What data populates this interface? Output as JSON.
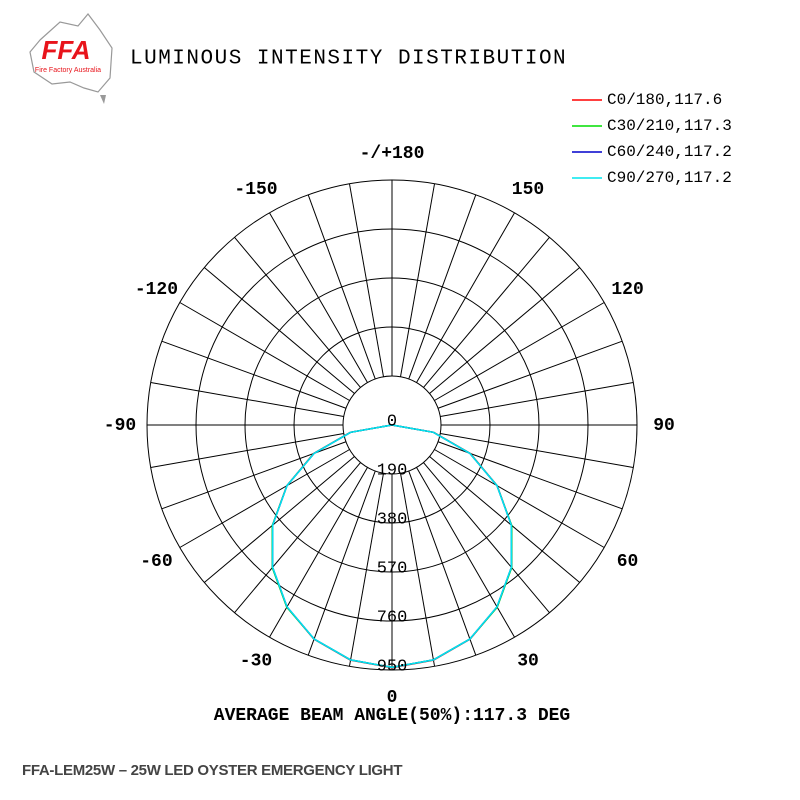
{
  "logo": {
    "mark": "FFA",
    "subtitle": "Fire Factory Australia"
  },
  "chart_data": {
    "type": "polar",
    "title": "LUMINOUS INTENSITY DISTRIBUTION",
    "theta": [
      -90,
      -80,
      -70,
      -60,
      -50,
      -40,
      -30,
      -20,
      -10,
      0,
      10,
      20,
      30,
      40,
      50,
      60,
      70,
      80,
      90
    ],
    "series": [
      {
        "name": "C0/180,117.6",
        "color": "#ff0000",
        "values": [
          0,
          164,
          323,
          471,
          605,
          721,
          815,
          884,
          926,
          941,
          926,
          884,
          815,
          721,
          605,
          471,
          323,
          164,
          0
        ]
      },
      {
        "name": "C30/210,117.3",
        "color": "#00dd00",
        "values": [
          0,
          163,
          322,
          470,
          606,
          722,
          816,
          883,
          925,
          940,
          925,
          883,
          816,
          722,
          606,
          470,
          322,
          163,
          0
        ]
      },
      {
        "name": "C60/240,117.2",
        "color": "#0000cc",
        "values": [
          0,
          163,
          321,
          470,
          604,
          720,
          814,
          883,
          925,
          940,
          925,
          883,
          814,
          720,
          604,
          470,
          321,
          163,
          0
        ]
      },
      {
        "name": "C90/270,117.2",
        "color": "#00e5ee",
        "values": [
          0,
          163,
          321,
          470,
          604,
          720,
          814,
          883,
          925,
          940,
          925,
          883,
          814,
          720,
          604,
          470,
          321,
          163,
          0
        ]
      }
    ],
    "rlim": [
      0,
      950
    ],
    "rticks": [
      0,
      190,
      380,
      570,
      760,
      950
    ],
    "thetaticks": [
      0,
      30,
      60,
      90,
      120,
      150,
      {
        "value": 180,
        "label": "-/+180"
      },
      -150,
      -120,
      -90,
      -60,
      -30
    ],
    "grid": true,
    "annotation": "AVERAGE BEAM ANGLE(50%):117.3 DEG"
  },
  "caption": "FFA-LEM25W – 25W LED OYSTER EMERGENCY LIGHT"
}
